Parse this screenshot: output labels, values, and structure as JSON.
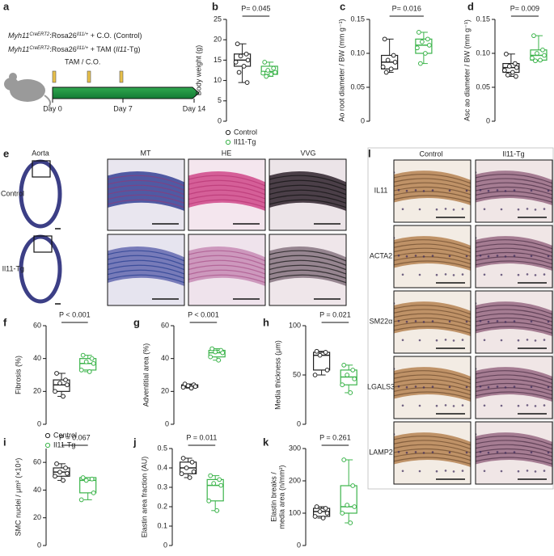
{
  "panel_labels": [
    "a",
    "b",
    "c",
    "d",
    "e",
    "f",
    "g",
    "h",
    "i",
    "j",
    "k",
    "l"
  ],
  "schematic": {
    "genotypes": [
      [
        "Myh11",
        "CreERT2",
        ":Rosa26",
        "Il11/+",
        " + C.O. (Control)"
      ],
      [
        "Myh11",
        "CreERT2",
        ":Rosa26",
        "Il11/+",
        " + TAM (",
        "Il11",
        "-Tg)"
      ]
    ],
    "treatment": "TAM / C.O.",
    "days": [
      "Day 0",
      "Day 7",
      "Day 14"
    ]
  },
  "histology_e": {
    "rows": [
      "Control",
      "Il11-Tg"
    ],
    "columns": [
      "Aorta",
      "MT",
      "HE",
      "VVG"
    ]
  },
  "histology_l": {
    "columns": [
      "Control",
      "Il11-Tg"
    ],
    "rows": [
      "IL11",
      "ACTA2",
      "SM22α",
      "LGALS3",
      "LAMP2"
    ]
  },
  "chart_data": [
    {
      "type": "box",
      "ylabel": "Body weight (g)",
      "p_label": "P= 0.045",
      "ylim": [
        0,
        25
      ],
      "yticks": [
        0,
        5,
        10,
        15,
        20,
        25
      ],
      "legend": "below",
      "series": [
        {
          "name": "Control",
          "color": "#222222",
          "min": 9.5,
          "q1": 13.5,
          "median": 15,
          "q3": 16.5,
          "max": 19,
          "points": [
            19,
            16.5,
            16,
            15,
            14.5,
            13.5,
            12,
            9.5
          ]
        },
        {
          "name": "Il11-Tg",
          "color": "#3cb44b",
          "min": 11,
          "q1": 11.5,
          "median": 12.2,
          "q3": 13.5,
          "max": 14.5,
          "points": [
            14.5,
            13,
            12.5,
            12,
            11.8,
            11.5,
            11
          ]
        }
      ]
    },
    {
      "type": "box",
      "ylabel": "Ao root diameter / BW (mm g⁻¹)",
      "p_label": "P= 0.016",
      "ylim": [
        0,
        0.15
      ],
      "yticks": [
        0,
        0.05,
        {
          "value": 0.1,
          "label": "0.10"
        },
        0.15
      ],
      "series": [
        {
          "color": "#222222",
          "min": 0.072,
          "q1": 0.077,
          "median": 0.087,
          "q3": 0.097,
          "max": 0.121,
          "points": [
            0.121,
            0.097,
            0.09,
            0.087,
            0.08,
            0.077,
            0.072
          ]
        },
        {
          "color": "#3cb44b",
          "min": 0.085,
          "q1": 0.1,
          "median": 0.112,
          "q3": 0.121,
          "max": 0.131,
          "points": [
            0.131,
            0.121,
            0.117,
            0.112,
            0.108,
            0.1,
            0.085
          ]
        }
      ]
    },
    {
      "type": "box",
      "ylabel": "Asc ao diameter / BW (mm g⁻¹)",
      "p_label": "P= 0.009",
      "ylim": [
        0,
        0.15
      ],
      "yticks": [
        0,
        0.05,
        {
          "value": 0.1,
          "label": "0.10"
        },
        0.15
      ],
      "series": [
        {
          "color": "#222222",
          "min": 0.066,
          "q1": 0.072,
          "median": 0.079,
          "q3": 0.085,
          "max": 0.099,
          "points": [
            0.099,
            0.085,
            0.081,
            0.079,
            0.075,
            0.072,
            0.068,
            0.066
          ]
        },
        {
          "color": "#3cb44b",
          "min": 0.089,
          "q1": 0.09,
          "median": 0.097,
          "q3": 0.105,
          "max": 0.126,
          "points": [
            0.126,
            0.105,
            0.1,
            0.097,
            0.093,
            0.09,
            0.089
          ]
        }
      ]
    },
    {
      "type": "box",
      "ylabel": "Fibrosis (%)",
      "p_label": "P < 0.001",
      "ylim": [
        0,
        60
      ],
      "yticks": [
        0,
        20,
        40,
        60
      ],
      "legend": "below",
      "series": [
        {
          "name": "Control",
          "color": "#222222",
          "min": 17,
          "q1": 20,
          "median": 24,
          "q3": 27,
          "max": 31,
          "points": [
            31,
            27,
            25,
            24,
            20,
            17
          ]
        },
        {
          "name": "Il11-Tg",
          "color": "#3cb44b",
          "min": 32,
          "q1": 33,
          "median": 37,
          "q3": 40,
          "max": 42,
          "points": [
            42,
            40,
            38,
            37,
            33,
            32
          ]
        }
      ]
    },
    {
      "type": "box",
      "ylabel": "Adventitial area (%)",
      "p_label": "P < 0.001",
      "ylim": [
        0,
        60
      ],
      "yticks": [
        0,
        20,
        40,
        60
      ],
      "series": [
        {
          "color": "#222222",
          "min": 22,
          "q1": 22.5,
          "median": 23,
          "q3": 24,
          "max": 24.5,
          "points": [
            24.5,
            24,
            23.5,
            23,
            22.5,
            22
          ]
        },
        {
          "color": "#3cb44b",
          "min": 39,
          "q1": 41,
          "median": 43.5,
          "q3": 45,
          "max": 46,
          "points": [
            46,
            45,
            44,
            43.5,
            41,
            39
          ]
        }
      ]
    },
    {
      "type": "box",
      "ylabel": "Media thickness (μm)",
      "p_label": "P = 0.021",
      "ylim": [
        0,
        100
      ],
      "yticks": [
        0,
        50,
        100
      ],
      "series": [
        {
          "color": "#222222",
          "min": 50,
          "q1": 55,
          "median": 70,
          "q3": 73,
          "max": 74,
          "points": [
            74,
            73,
            70,
            55,
            50
          ]
        },
        {
          "color": "#3cb44b",
          "min": 32,
          "q1": 40,
          "median": 48,
          "q3": 55,
          "max": 60,
          "points": [
            60,
            55,
            50,
            46,
            40,
            32
          ]
        }
      ]
    },
    {
      "type": "box",
      "ylabel": "SMC nuclei / μm² (×10⁴)",
      "p_label": "P = 0.067",
      "ylim": [
        0,
        70
      ],
      "yticks": [
        0,
        20,
        40,
        60
      ],
      "series": [
        {
          "color": "#222222",
          "min": 47,
          "q1": 50,
          "median": 53,
          "q3": 56,
          "max": 59,
          "points": [
            59,
            56,
            53,
            52,
            50,
            47
          ]
        },
        {
          "color": "#3cb44b",
          "min": 33,
          "q1": 38,
          "median": 47,
          "q3": 49,
          "max": 49,
          "points": [
            49,
            48,
            47,
            38,
            33
          ]
        }
      ]
    },
    {
      "type": "box",
      "ylabel": "Elastin area fraction (AU)",
      "p_label": "P = 0.011",
      "ylim": [
        0,
        0.5
      ],
      "yticks": [
        0,
        0.1,
        0.2,
        0.3,
        0.4,
        0.5
      ],
      "series": [
        {
          "color": "#222222",
          "min": 0.35,
          "q1": 0.37,
          "median": 0.4,
          "q3": 0.43,
          "max": 0.45,
          "points": [
            0.45,
            0.43,
            0.4,
            0.38,
            0.37,
            0.35
          ]
        },
        {
          "color": "#3cb44b",
          "min": 0.18,
          "q1": 0.23,
          "median": 0.31,
          "q3": 0.34,
          "max": 0.36,
          "points": [
            0.36,
            0.34,
            0.32,
            0.31,
            0.23,
            0.18
          ]
        }
      ]
    },
    {
      "type": "box",
      "ylabel": [
        "Elastin breaks /",
        "media area (n/mm²)"
      ],
      "p_label": "P = 0.261",
      "ylim": [
        0,
        300
      ],
      "yticks": [
        0,
        100,
        200,
        300
      ],
      "series": [
        {
          "color": "#222222",
          "min": 85,
          "q1": 90,
          "median": 105,
          "q3": 115,
          "max": 120,
          "points": [
            120,
            115,
            105,
            100,
            90,
            85
          ]
        },
        {
          "color": "#3cb44b",
          "min": 70,
          "q1": 100,
          "median": 120,
          "q3": 185,
          "max": 265,
          "points": [
            265,
            185,
            125,
            120,
            100,
            70
          ]
        }
      ]
    }
  ]
}
